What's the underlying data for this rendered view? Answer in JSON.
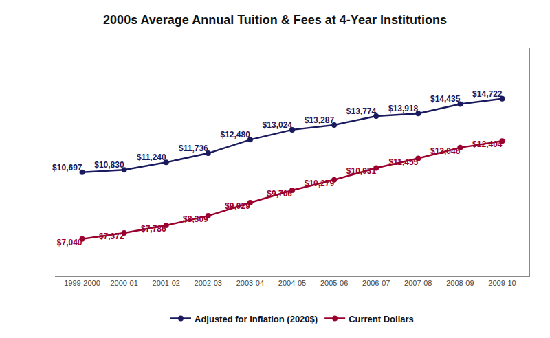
{
  "chart_data": {
    "type": "line",
    "title": "2000s Average Annual Tuition & Fees at 4-Year Institutions",
    "categories": [
      "1999-2000",
      "2000-01",
      "2001-02",
      "2002-03",
      "2003-04",
      "2004-05",
      "2005-06",
      "2006-07",
      "2007-08",
      "2008-09",
      "2009-10"
    ],
    "series": [
      {
        "name": "Adjusted for Inflation (2020$)",
        "color": "#1a1a5e",
        "marker": "circle",
        "values": [
          10697,
          10830,
          11240,
          11736,
          12480,
          13024,
          13287,
          13774,
          13918,
          14435,
          14722
        ],
        "value_labels": [
          "$10,697",
          "$10,830",
          "$11,240",
          "$11,736",
          "$12,480",
          "$13,024",
          "$13,287",
          "$13,774",
          "$13,918",
          "$14,435",
          "$14,722"
        ]
      },
      {
        "name": "Current Dollars",
        "color": "#99002e",
        "marker": "circle",
        "values": [
          7040,
          7372,
          7786,
          8309,
          9029,
          9706,
          10279,
          10931,
          11455,
          12046,
          12404
        ],
        "value_labels": [
          "$7,040",
          "$7,372",
          "$7,786",
          "$8,309",
          "$9,029",
          "$9,706",
          "$10,279",
          "$10,931",
          "$11,455",
          "$12,046",
          "$12,404"
        ]
      }
    ],
    "ylim": [
      5000,
      17500
    ],
    "grid": false,
    "legend": "bottom",
    "data_labels": true,
    "tick_labels": "x"
  }
}
